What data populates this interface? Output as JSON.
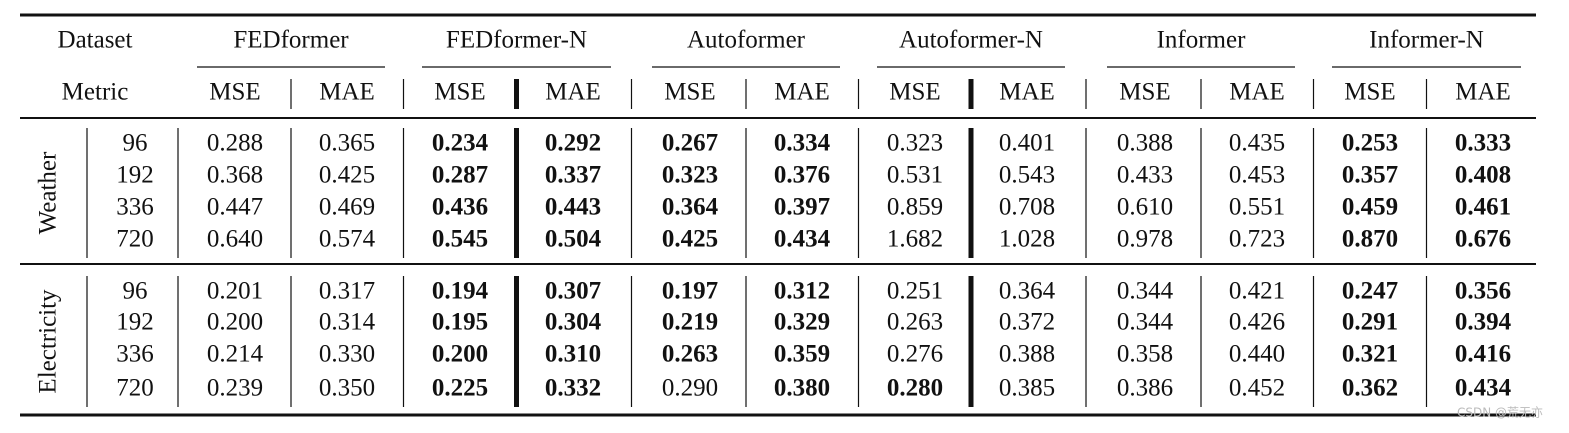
{
  "table": {
    "header": {
      "dataset": "Dataset",
      "metric": "Metric",
      "groups": [
        "FEDformer",
        "FEDformer-N",
        "Autoformer",
        "Autoformer-N",
        "Informer",
        "Informer-N"
      ],
      "metrics": [
        "MSE",
        "MAE",
        "MSE",
        "MAE",
        "MSE",
        "MAE",
        "MSE",
        "MAE",
        "MSE",
        "MAE",
        "MSE",
        "MAE"
      ]
    },
    "sections": [
      {
        "name": "Weather",
        "rows": [
          {
            "horizon": "96",
            "values": [
              "0.288",
              "0.365",
              "0.234",
              "0.292",
              "0.267",
              "0.334",
              "0.323",
              "0.401",
              "0.388",
              "0.435",
              "0.253",
              "0.333"
            ],
            "bold": [
              false,
              false,
              true,
              true,
              true,
              true,
              false,
              false,
              false,
              false,
              true,
              true
            ]
          },
          {
            "horizon": "192",
            "values": [
              "0.368",
              "0.425",
              "0.287",
              "0.337",
              "0.323",
              "0.376",
              "0.531",
              "0.543",
              "0.433",
              "0.453",
              "0.357",
              "0.408"
            ],
            "bold": [
              false,
              false,
              true,
              true,
              true,
              true,
              false,
              false,
              false,
              false,
              true,
              true
            ]
          },
          {
            "horizon": "336",
            "values": [
              "0.447",
              "0.469",
              "0.436",
              "0.443",
              "0.364",
              "0.397",
              "0.859",
              "0.708",
              "0.610",
              "0.551",
              "0.459",
              "0.461"
            ],
            "bold": [
              false,
              false,
              true,
              true,
              true,
              true,
              false,
              false,
              false,
              false,
              true,
              true
            ]
          },
          {
            "horizon": "720",
            "values": [
              "0.640",
              "0.574",
              "0.545",
              "0.504",
              "0.425",
              "0.434",
              "1.682",
              "1.028",
              "0.978",
              "0.723",
              "0.870",
              "0.676"
            ],
            "bold": [
              false,
              false,
              true,
              true,
              true,
              true,
              false,
              false,
              false,
              false,
              true,
              true
            ]
          }
        ]
      },
      {
        "name": "Electricity",
        "rows": [
          {
            "horizon": "96",
            "values": [
              "0.201",
              "0.317",
              "0.194",
              "0.307",
              "0.197",
              "0.312",
              "0.251",
              "0.364",
              "0.344",
              "0.421",
              "0.247",
              "0.356"
            ],
            "bold": [
              false,
              false,
              true,
              true,
              true,
              true,
              false,
              false,
              false,
              false,
              true,
              true
            ]
          },
          {
            "horizon": "192",
            "values": [
              "0.200",
              "0.314",
              "0.195",
              "0.304",
              "0.219",
              "0.329",
              "0.263",
              "0.372",
              "0.344",
              "0.426",
              "0.291",
              "0.394"
            ],
            "bold": [
              false,
              false,
              true,
              true,
              true,
              true,
              false,
              false,
              false,
              false,
              true,
              true
            ]
          },
          {
            "horizon": "336",
            "values": [
              "0.214",
              "0.330",
              "0.200",
              "0.310",
              "0.263",
              "0.359",
              "0.276",
              "0.388",
              "0.358",
              "0.440",
              "0.321",
              "0.416"
            ],
            "bold": [
              false,
              false,
              true,
              true,
              true,
              true,
              false,
              false,
              false,
              false,
              true,
              true
            ]
          },
          {
            "horizon": "720",
            "values": [
              "0.239",
              "0.350",
              "0.225",
              "0.332",
              "0.290",
              "0.380",
              "0.280",
              "0.385",
              "0.386",
              "0.452",
              "0.362",
              "0.434"
            ],
            "bold": [
              false,
              false,
              true,
              true,
              false,
              true,
              true,
              false,
              false,
              false,
              true,
              true
            ]
          }
        ]
      }
    ]
  },
  "watermark": "CSDN @荒无亦"
}
